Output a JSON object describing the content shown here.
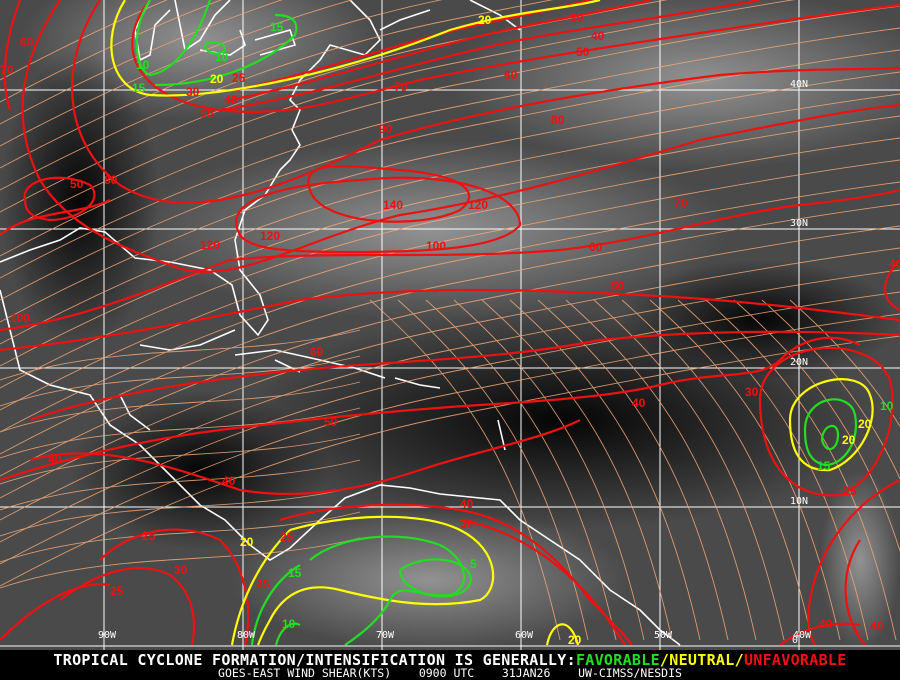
{
  "title_line": {
    "prefix": "TROPICAL CYCLONE FORMATION/INTENSIFICATION IS GENERALLY:",
    "favorable": "FAVORABLE",
    "sep1": "/",
    "neutral": "NEUTRAL",
    "sep2": "/",
    "unfavorable": "UNFAVORABLE"
  },
  "subtitle": {
    "product": "GOES-EAST WIND SHEAR(KTS)",
    "time": "0900 UTC",
    "date": "31JAN26",
    "source": "UW-CIMSS/NESDIS"
  },
  "colors": {
    "favorable": "#22dd22",
    "neutral": "#ffff00",
    "unfavorable": "#ee1111",
    "streamlines": "#f0a878",
    "grid": "#ffffff",
    "coastline": "#ffffff"
  },
  "longitude_labels": [
    "90W",
    "80W",
    "70W",
    "60W",
    "50W",
    "40W"
  ],
  "latitude_labels": [
    "40N",
    "30N",
    "20N",
    "10N",
    "0"
  ],
  "contour_labels": [
    {
      "value": "60",
      "category": "unfavorable"
    },
    {
      "value": "70",
      "category": "unfavorable"
    },
    {
      "value": "15",
      "category": "favorable"
    },
    {
      "value": "20",
      "category": "neutral"
    },
    {
      "value": "10",
      "category": "favorable"
    },
    {
      "value": "10",
      "category": "favorable"
    },
    {
      "value": "15",
      "category": "favorable"
    },
    {
      "value": "20",
      "category": "neutral"
    },
    {
      "value": "25",
      "category": "unfavorable"
    },
    {
      "value": "30",
      "category": "unfavorable"
    },
    {
      "value": "40",
      "category": "unfavorable"
    },
    {
      "value": "50",
      "category": "unfavorable"
    },
    {
      "value": "70",
      "category": "unfavorable"
    },
    {
      "value": "60",
      "category": "unfavorable"
    },
    {
      "value": "50",
      "category": "unfavorable"
    },
    {
      "value": "40",
      "category": "unfavorable"
    },
    {
      "value": "30",
      "category": "unfavorable"
    },
    {
      "value": "80",
      "category": "unfavorable"
    },
    {
      "value": "90",
      "category": "unfavorable"
    },
    {
      "value": "70",
      "category": "unfavorable"
    },
    {
      "value": "50",
      "category": "unfavorable"
    },
    {
      "value": "80",
      "category": "unfavorable"
    },
    {
      "value": "140",
      "category": "unfavorable"
    },
    {
      "value": "120",
      "category": "unfavorable"
    },
    {
      "value": "120",
      "category": "unfavorable"
    },
    {
      "value": "120",
      "category": "unfavorable"
    },
    {
      "value": "100",
      "category": "unfavorable"
    },
    {
      "value": "60",
      "category": "unfavorable"
    },
    {
      "value": "50",
      "category": "unfavorable"
    },
    {
      "value": "100",
      "category": "unfavorable"
    },
    {
      "value": "60",
      "category": "unfavorable"
    },
    {
      "value": "50",
      "category": "unfavorable"
    },
    {
      "value": "40",
      "category": "unfavorable"
    },
    {
      "value": "30",
      "category": "unfavorable"
    },
    {
      "value": "40",
      "category": "unfavorable"
    },
    {
      "value": "40",
      "category": "unfavorable"
    },
    {
      "value": "40",
      "category": "unfavorable"
    },
    {
      "value": "30",
      "category": "unfavorable"
    },
    {
      "value": "25",
      "category": "unfavorable"
    },
    {
      "value": "25",
      "category": "unfavorable"
    },
    {
      "value": "20",
      "category": "neutral"
    },
    {
      "value": "30",
      "category": "unfavorable"
    },
    {
      "value": "25",
      "category": "unfavorable"
    },
    {
      "value": "25",
      "category": "unfavorable"
    },
    {
      "value": "15",
      "category": "favorable"
    },
    {
      "value": "10",
      "category": "favorable"
    },
    {
      "value": "5",
      "category": "favorable"
    },
    {
      "value": "20",
      "category": "neutral"
    },
    {
      "value": "20",
      "category": "neutral"
    },
    {
      "value": "15",
      "category": "favorable"
    },
    {
      "value": "10",
      "category": "favorable"
    },
    {
      "value": "25",
      "category": "unfavorable"
    },
    {
      "value": "40",
      "category": "unfavorable"
    },
    {
      "value": "40",
      "category": "unfavorable"
    },
    {
      "value": "40",
      "category": "unfavorable"
    },
    {
      "value": "20",
      "category": "neutral"
    }
  ]
}
